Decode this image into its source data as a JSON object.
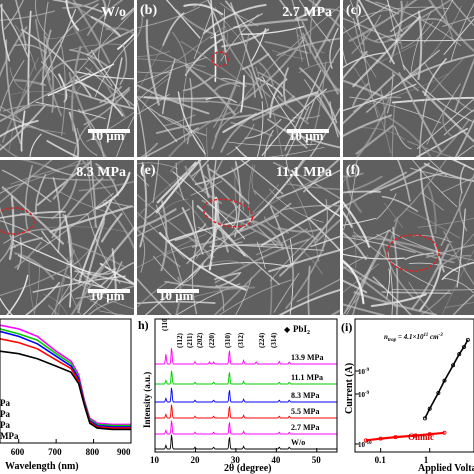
{
  "sem_panels": [
    {
      "label": "",
      "value": "W/o",
      "scale": "10 μm"
    },
    {
      "label": "(b)",
      "value": "2.7 MPa",
      "scale": "10 μm"
    },
    {
      "label": "(c)",
      "value": "",
      "scale": ""
    },
    {
      "label": "",
      "value": "8.3 MPa",
      "scale": "10 μm"
    },
    {
      "label": "(e)",
      "value": "11.1 MPa",
      "scale": "10 μm"
    },
    {
      "label": "(f)",
      "value": "",
      "scale": ""
    }
  ],
  "absorbance_panel": {
    "xlabel": "Wavelength (nm)",
    "xticks": [
      "600",
      "700",
      "800",
      "900"
    ],
    "legend": [
      "Pa",
      "Pa",
      "Pa",
      "MPa"
    ]
  },
  "xrd_panel": {
    "label": "h)",
    "xlabel": "2θ (degree)",
    "ylabel": "Intensity (a.u.)",
    "xticks": [
      "10",
      "20",
      "30",
      "40",
      "50"
    ],
    "legend_marker": "◆",
    "legend_text": "PbI",
    "legend_sub": "2",
    "peak_labels": [
      "(110)",
      "(112)",
      "(211)",
      "(202)",
      "(220)",
      "(310)",
      "(312)",
      "(224)",
      "(314)"
    ]
  },
  "sclc_panel": {
    "label": "(i)",
    "annotation": "n",
    "annotation_sub": "trap",
    "annotation_rest": " = 4.1×10",
    "annotation_sup": "11",
    "annotation_unit": " cm",
    "annotation_unit_sup": "-3",
    "ylabel": "Current (A)",
    "xlabel": "Applied Volta",
    "xticks": [
      "0.1",
      "1"
    ],
    "yticks": [
      "10",
      "10",
      "10"
    ],
    "ytick_sups": [
      "-9",
      "-9",
      "-10"
    ],
    "ohmic": "Ohmic"
  },
  "chart_data": [
    {
      "type": "line",
      "title": "",
      "xlabel": "Wavelength (nm)",
      "xlim": [
        550,
        900
      ],
      "ylabel": "",
      "series": [
        {
          "color": "#ff00ff",
          "x": [
            550,
            600,
            650,
            700,
            740,
            760,
            775,
            790,
            810,
            850,
            900
          ],
          "y": [
            0.95,
            0.92,
            0.86,
            0.74,
            0.66,
            0.55,
            0.35,
            0.2,
            0.16,
            0.15,
            0.15
          ]
        },
        {
          "color": "#00cc00",
          "x": [
            550,
            600,
            650,
            700,
            740,
            760,
            775,
            790,
            810,
            850,
            900
          ],
          "y": [
            0.92,
            0.88,
            0.83,
            0.72,
            0.64,
            0.53,
            0.34,
            0.19,
            0.15,
            0.14,
            0.14
          ]
        },
        {
          "color": "#0000ff",
          "x": [
            550,
            600,
            650,
            700,
            740,
            760,
            775,
            790,
            810,
            850,
            900
          ],
          "y": [
            0.9,
            0.86,
            0.8,
            0.7,
            0.62,
            0.52,
            0.33,
            0.18,
            0.14,
            0.13,
            0.13
          ]
        },
        {
          "color": "#ff0000",
          "x": [
            550,
            600,
            650,
            700,
            740,
            760,
            775,
            790,
            810,
            850,
            900
          ],
          "y": [
            0.84,
            0.81,
            0.76,
            0.67,
            0.6,
            0.5,
            0.32,
            0.17,
            0.13,
            0.12,
            0.12
          ]
        },
        {
          "color": "#000000",
          "x": [
            550,
            600,
            650,
            700,
            740,
            760,
            775,
            790,
            810,
            850,
            900
          ],
          "y": [
            0.74,
            0.72,
            0.68,
            0.62,
            0.57,
            0.48,
            0.31,
            0.16,
            0.12,
            0.11,
            0.11
          ]
        }
      ]
    },
    {
      "type": "line",
      "title": "",
      "xlabel": "2θ (degree)",
      "ylabel": "Intensity (a.u.)",
      "xlim": [
        10,
        55
      ],
      "series": [
        {
          "name": "13.9 MPa",
          "color": "#ff00ff",
          "peaks": [
            [
              12.7,
              0.55
            ],
            [
              14.1,
              0.95
            ],
            [
              19.9,
              0.12
            ],
            [
              23.5,
              0.12
            ],
            [
              24.5,
              0.12
            ],
            [
              28.4,
              0.8
            ],
            [
              31.9,
              0.2
            ],
            [
              35.0,
              0.12
            ],
            [
              40.7,
              0.15
            ],
            [
              43.2,
              0.12
            ]
          ]
        },
        {
          "name": "11.1 MPa",
          "color": "#00cc00",
          "peaks": [
            [
              12.7,
              0.2
            ],
            [
              14.1,
              0.8
            ],
            [
              19.9,
              0.1
            ],
            [
              24.5,
              0.1
            ],
            [
              28.4,
              0.7
            ],
            [
              31.9,
              0.15
            ],
            [
              40.7,
              0.1
            ],
            [
              43.2,
              0.1
            ]
          ]
        },
        {
          "name": "8.3 MPa",
          "color": "#0000ff",
          "peaks": [
            [
              12.7,
              0.2
            ],
            [
              14.1,
              0.85
            ],
            [
              19.9,
              0.1
            ],
            [
              24.5,
              0.1
            ],
            [
              28.4,
              0.7
            ],
            [
              31.9,
              0.15
            ],
            [
              40.7,
              0.1
            ],
            [
              43.2,
              0.1
            ]
          ]
        },
        {
          "name": "5.5 MPa",
          "color": "#ff0000",
          "peaks": [
            [
              12.7,
              0.2
            ],
            [
              14.1,
              0.8
            ],
            [
              19.9,
              0.1
            ],
            [
              24.5,
              0.1
            ],
            [
              28.4,
              0.7
            ],
            [
              31.9,
              0.15
            ],
            [
              40.7,
              0.1
            ],
            [
              43.2,
              0.1
            ]
          ]
        },
        {
          "name": "2.7 MPa",
          "color": "#ff00ff",
          "peaks": [
            [
              12.7,
              0.2
            ],
            [
              14.1,
              0.8
            ],
            [
              19.9,
              0.1
            ],
            [
              24.5,
              0.1
            ],
            [
              28.4,
              0.7
            ],
            [
              31.9,
              0.15
            ],
            [
              40.7,
              0.1
            ],
            [
              43.2,
              0.1
            ]
          ]
        },
        {
          "name": "W/o",
          "color": "#000000",
          "peaks": [
            [
              12.7,
              0.2
            ],
            [
              14.1,
              0.85
            ],
            [
              19.9,
              0.1
            ],
            [
              24.5,
              0.1
            ],
            [
              28.4,
              0.7
            ],
            [
              31.9,
              0.15
            ],
            [
              40.7,
              0.1
            ],
            [
              43.2,
              0.1
            ]
          ]
        }
      ]
    },
    {
      "type": "scatter",
      "title": "",
      "xlabel": "Applied Volta",
      "ylabel": "Current (A)",
      "x_scale": "log",
      "y_scale": "log",
      "series": [
        {
          "name": "Ohmic",
          "color": "#ff0000",
          "x": [
            0.05,
            0.1,
            0.2,
            0.5,
            1,
            2
          ],
          "y": [
            1.1e-10,
            1.15e-10,
            1.2e-10,
            1.25e-10,
            1.3e-10,
            1.35e-10
          ]
        },
        {
          "name": "",
          "color": "#000000",
          "x": [
            0.8,
            1,
            1.5,
            2,
            3,
            4,
            5,
            6
          ],
          "y": [
            2e-10,
            2.6e-10,
            4e-10,
            5.6e-10,
            8.5e-10,
            1.15e-09,
            1.4e-09,
            1.7e-09
          ]
        }
      ]
    }
  ]
}
